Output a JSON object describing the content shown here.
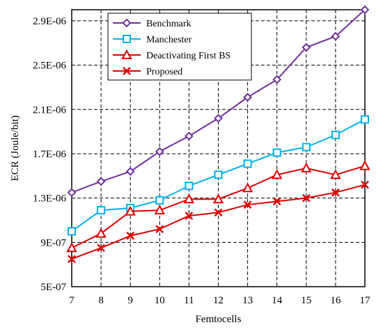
{
  "chart_data": {
    "type": "line",
    "xlabel": "Femtocells",
    "ylabel": "ECR (Joule/bit)",
    "x": [
      7,
      8,
      9,
      10,
      11,
      12,
      13,
      14,
      15,
      16,
      17
    ],
    "xlim": [
      7,
      17
    ],
    "ylim": [
      5e-07,
      3e-06
    ],
    "y_ticks": [
      5e-07,
      9e-07,
      1.3e-06,
      1.7e-06,
      2.1e-06,
      2.5e-06,
      2.9e-06
    ],
    "y_tick_labels": [
      "5E-07",
      "9E-07",
      "1.3E-06",
      "1.7E-06",
      "2.1E-06",
      "2.5E-06",
      "2.9E-06"
    ],
    "x_tick_labels": [
      "7",
      "8",
      "9",
      "10",
      "11",
      "12",
      "13",
      "14",
      "15",
      "16",
      "17"
    ],
    "grid": true,
    "legend_position": "top-left",
    "series": [
      {
        "name": "Benchmark",
        "color": "#7030A0",
        "marker": "diamond",
        "values": [
          1.35e-06,
          1.45e-06,
          1.54e-06,
          1.72e-06,
          1.86e-06,
          2.02e-06,
          2.21e-06,
          2.37e-06,
          2.66e-06,
          2.76e-06,
          3e-06
        ]
      },
      {
        "name": "Manchester",
        "color": "#00B0F0",
        "marker": "square",
        "values": [
          1e-06,
          1.19e-06,
          1.21e-06,
          1.28e-06,
          1.41e-06,
          1.51e-06,
          1.61e-06,
          1.71e-06,
          1.76e-06,
          1.87e-06,
          2.01e-06
        ]
      },
      {
        "name": "Deactivating First BS",
        "color": "#E00000",
        "marker": "triangle",
        "values": [
          8.5e-07,
          9.8e-07,
          1.18e-06,
          1.19e-06,
          1.29e-06,
          1.29e-06,
          1.39e-06,
          1.51e-06,
          1.57e-06,
          1.51e-06,
          1.59e-06
        ]
      },
      {
        "name": "Proposed",
        "color": "#E00000",
        "marker": "x",
        "values": [
          7.5e-07,
          8.5e-07,
          9.6e-07,
          1.02e-06,
          1.14e-06,
          1.17e-06,
          1.24e-06,
          1.27e-06,
          1.3e-06,
          1.35e-06,
          1.42e-06
        ]
      }
    ]
  }
}
